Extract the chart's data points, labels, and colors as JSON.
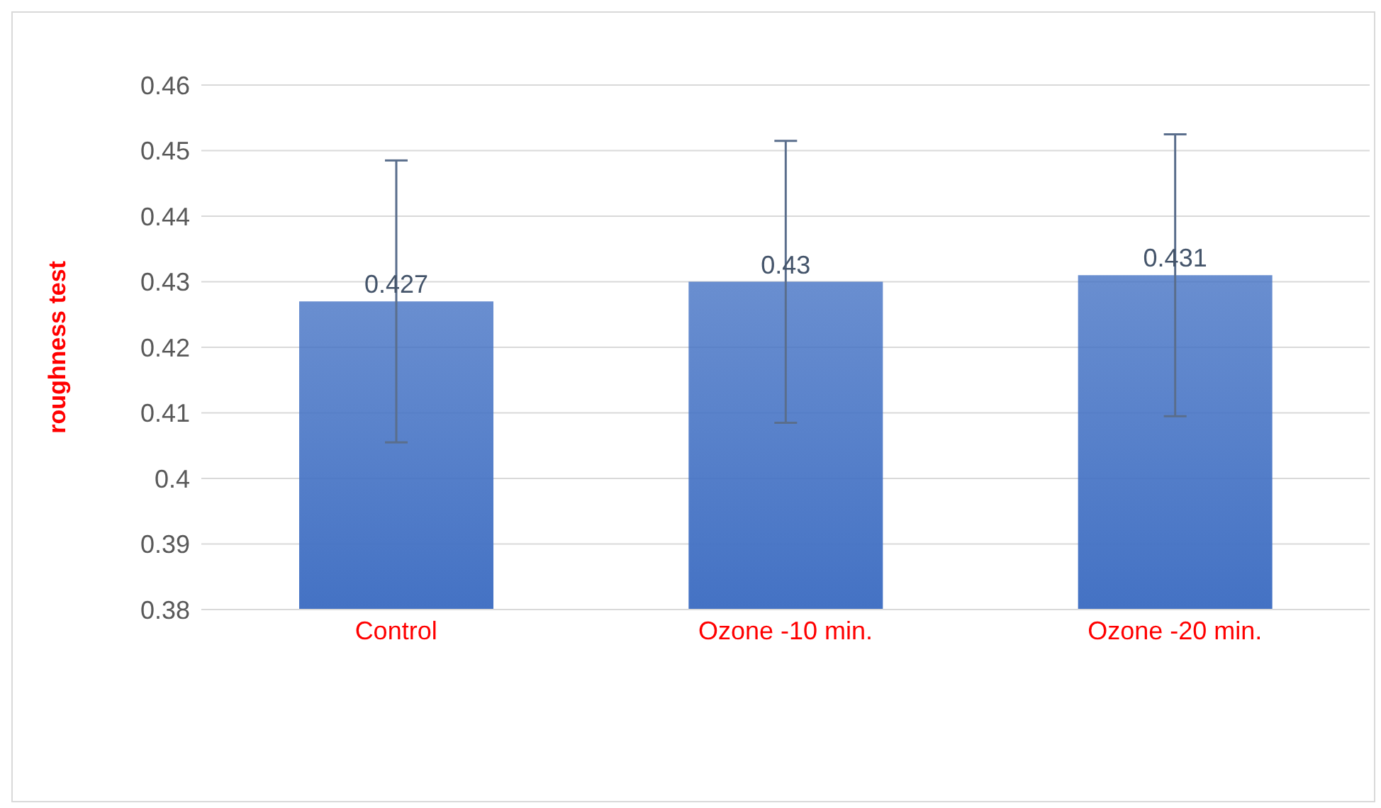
{
  "chart_data": {
    "type": "bar",
    "ylabel": "roughness test",
    "categories": [
      "Control",
      "Ozone -10 min.",
      "Ozone -20 min."
    ],
    "values": [
      0.427,
      0.43,
      0.431
    ],
    "errors": [
      0.0215,
      0.0215,
      0.0215
    ],
    "color": "#4472c4",
    "ylim": [
      0.38,
      0.46
    ],
    "yticks": [
      0.38,
      0.39,
      0.4,
      0.41,
      0.42,
      0.43,
      0.44,
      0.45,
      0.46
    ],
    "grid": "y",
    "data_labels": true,
    "legend": false
  }
}
